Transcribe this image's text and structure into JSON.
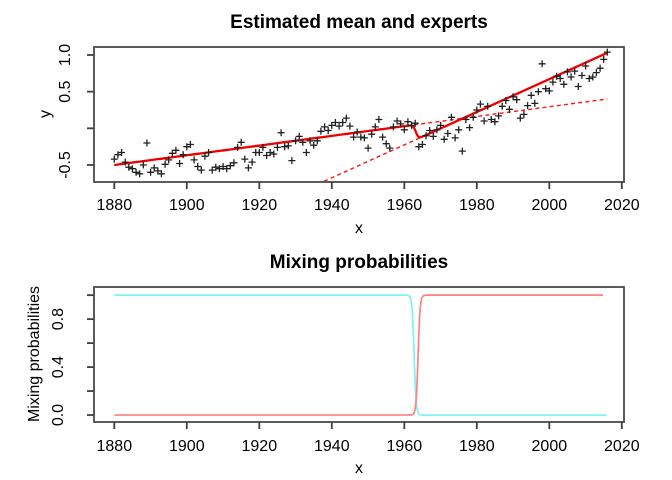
{
  "figure": {
    "background": "#ffffff",
    "top_chart": {
      "title": "Estimated mean and experts",
      "xlabel": "x",
      "ylabel": "y"
    },
    "bottom_chart": {
      "title": "Mixing probabilities",
      "xlabel": "x",
      "ylabel": "Mixing probabilities"
    }
  },
  "chart_data": [
    {
      "id": "estimated-mean-and-experts",
      "type": "scatter",
      "title": "Estimated mean and experts",
      "xlabel": "x",
      "ylabel": "y",
      "xlim": [
        1874.4,
        2020.6
      ],
      "ylim": [
        -0.732,
        1.109
      ],
      "grid": false,
      "x_ticks": [
        1880,
        1900,
        1920,
        1940,
        1960,
        1980,
        2000,
        2020
      ],
      "x_tick_labels": [
        "1880",
        "1900",
        "1920",
        "1940",
        "1960",
        "1980",
        "2000",
        "2020"
      ],
      "y_ticks": [
        -0.5,
        0.0,
        0.5,
        1.0
      ],
      "y_tick_labels": [
        "-0.5",
        "",
        "0.5",
        "1.0"
      ],
      "points": {
        "name": "observations",
        "marker": "plus",
        "color": "#202020",
        "x_start": 1880,
        "x_step": 1,
        "values": [
          -0.42,
          -0.36,
          -0.33,
          -0.46,
          -0.53,
          -0.55,
          -0.6,
          -0.62,
          -0.5,
          -0.2,
          -0.6,
          -0.54,
          -0.58,
          -0.62,
          -0.49,
          -0.43,
          -0.34,
          -0.3,
          -0.48,
          -0.36,
          -0.25,
          -0.22,
          -0.43,
          -0.52,
          -0.57,
          -0.38,
          -0.33,
          -0.57,
          -0.53,
          -0.55,
          -0.52,
          -0.55,
          -0.51,
          -0.47,
          -0.26,
          -0.19,
          -0.42,
          -0.54,
          -0.46,
          -0.33,
          -0.33,
          -0.26,
          -0.37,
          -0.33,
          -0.35,
          -0.26,
          -0.06,
          -0.25,
          -0.24,
          -0.44,
          -0.17,
          -0.11,
          -0.19,
          -0.33,
          -0.17,
          -0.23,
          -0.17,
          -0.04,
          0.02,
          -0.03,
          0.04,
          0.08,
          0.03,
          0.08,
          0.14,
          0.03,
          -0.12,
          -0.05,
          -0.12,
          -0.13,
          -0.27,
          -0.08,
          0.02,
          0.12,
          -0.12,
          -0.21,
          -0.27,
          0.02,
          0.1,
          0.06,
          -0.02,
          0.09,
          0.04,
          0.07,
          -0.25,
          -0.22,
          -0.1,
          -0.03,
          -0.11,
          -0.02,
          0.04,
          -0.15,
          -0.07,
          0.15,
          -0.13,
          -0.02,
          -0.31,
          0.12,
          0.01,
          0.15,
          0.25,
          0.33,
          0.1,
          0.3,
          0.12,
          0.09,
          0.17,
          0.3,
          0.38,
          0.26,
          0.43,
          0.39,
          0.14,
          0.19,
          0.31,
          0.45,
          0.34,
          0.5,
          0.88,
          0.54,
          0.51,
          0.63,
          0.71,
          0.68,
          0.6,
          0.77,
          0.7,
          0.78,
          0.57,
          0.72,
          0.85,
          0.68,
          0.7,
          0.76,
          0.82,
          0.94,
          1.04
        ]
      },
      "expert_lines": [
        {
          "name": "expert-1",
          "style": "dashed",
          "color": "#ff1414",
          "width": 1.4,
          "x": [
            1880,
            2016
          ],
          "y": [
            -0.5,
            0.4
          ]
        },
        {
          "name": "expert-2",
          "style": "dashed",
          "color": "#ff1414",
          "width": 1.4,
          "x": [
            1880,
            2016
          ],
          "y": [
            -2.02,
            1.03
          ]
        }
      ],
      "mean_line": {
        "name": "estimated-mean",
        "style": "solid",
        "color": "#ee0000",
        "width": 2.3,
        "definition": "p1*expert1 + p2*expert2",
        "switch_midpoint": 1963.2,
        "switch_scale": 0.35
      }
    },
    {
      "id": "mixing-probabilities",
      "type": "line",
      "title": "Mixing probabilities",
      "xlabel": "x",
      "ylabel": "Mixing probabilities",
      "xlim": [
        1874.4,
        2020.6
      ],
      "ylim": [
        -0.058,
        1.068
      ],
      "grid": false,
      "x_ticks": [
        1880,
        1900,
        1920,
        1940,
        1960,
        1980,
        2000,
        2020
      ],
      "x_tick_labels": [
        "1880",
        "1900",
        "1920",
        "1940",
        "1960",
        "1980",
        "2000",
        "2020"
      ],
      "y_ticks": [
        0.0,
        0.2,
        0.4,
        0.6,
        0.8,
        1.0
      ],
      "y_tick_labels": [
        "0.0",
        "",
        "0.4",
        "",
        "0.8",
        ""
      ],
      "series": [
        {
          "name": "prob-expert-1",
          "color": "#7df2f2",
          "width": 1.7,
          "shape": "logistic-falling",
          "midpoint": 1962.7,
          "scale": 0.28,
          "x_range": [
            1880,
            2016
          ],
          "levels": [
            1.0,
            0.0
          ]
        },
        {
          "name": "prob-expert-2",
          "color": "#ff8080",
          "width": 1.7,
          "shape": "logistic-rising",
          "midpoint": 1963.8,
          "scale": 0.28,
          "x_range": [
            1880,
            2016
          ],
          "levels": [
            0.0,
            1.0
          ]
        }
      ]
    }
  ],
  "style": {
    "box_color": "#4a4a4a",
    "tick_color": "#404040",
    "text_color": "#000000"
  }
}
